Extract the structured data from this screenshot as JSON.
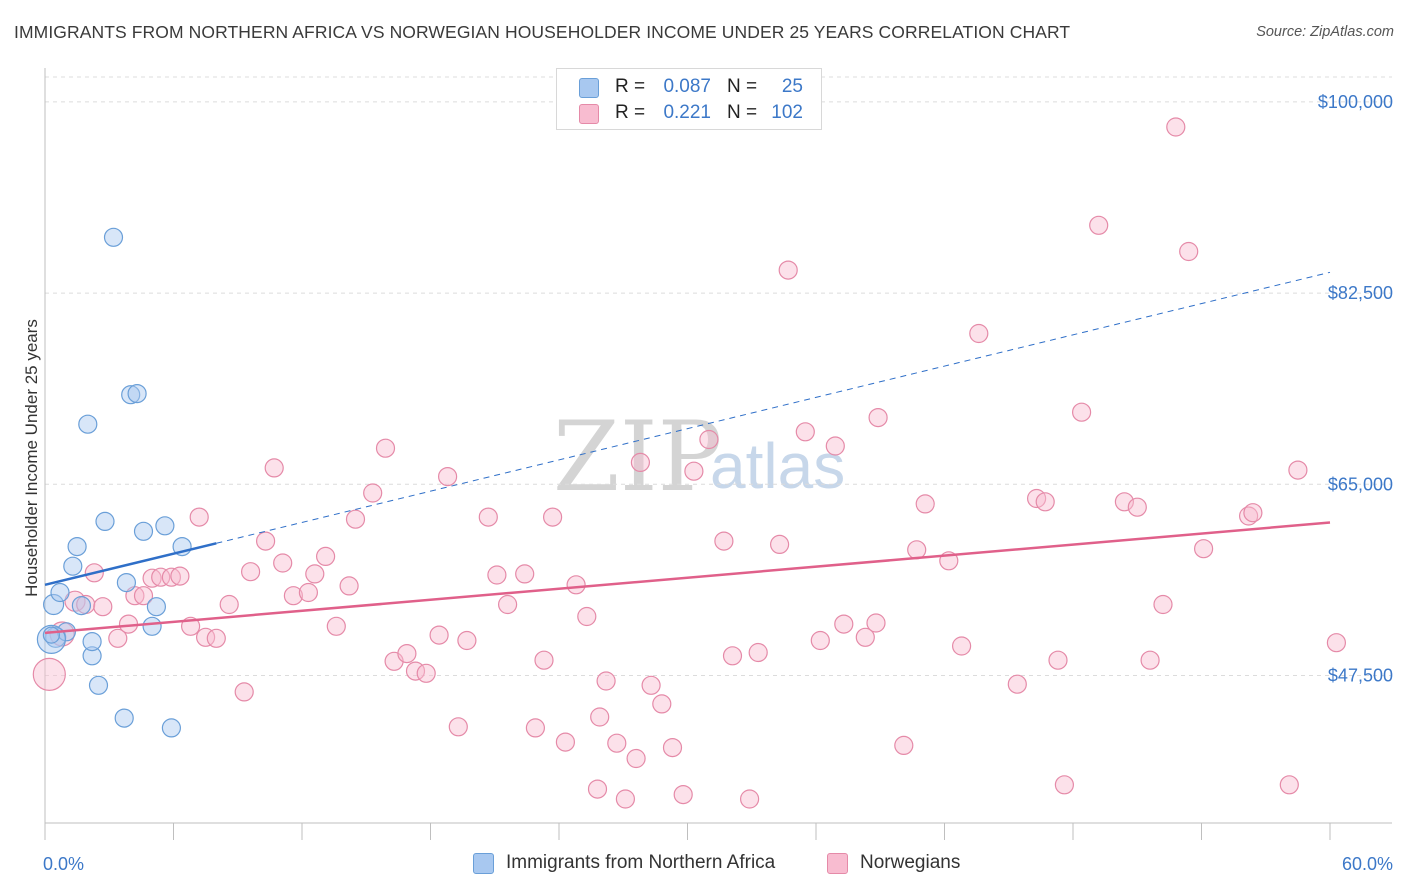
{
  "title": "IMMIGRANTS FROM NORTHERN AFRICA VS NORWEGIAN HOUSEHOLDER INCOME UNDER 25 YEARS CORRELATION CHART",
  "source": "Source: ZipAtlas.com",
  "watermark": {
    "zip": "ZIP",
    "atlas": "atlas"
  },
  "legend": {
    "rows": [
      {
        "r_label": "R =",
        "r_value": "0.087",
        "n_label": "N =",
        "n_value": "25",
        "color": "#a8c8f0",
        "border": "#6a9fd8"
      },
      {
        "r_label": "R =",
        "r_value": "0.221",
        "n_label": "N =",
        "n_value": "102",
        "color": "#f8bcd0",
        "border": "#e58aa8"
      }
    ]
  },
  "bottom_legend": [
    {
      "label": "Immigrants from Northern Africa",
      "color": "#a8c8f0",
      "border": "#6a9fd8"
    },
    {
      "label": "Norwegians",
      "color": "#f8bcd0",
      "border": "#e58aa8"
    }
  ],
  "chart_data": {
    "type": "scatter",
    "title": "IMMIGRANTS FROM NORTHERN AFRICA VS NORWEGIAN HOUSEHOLDER INCOME UNDER 25 YEARS CORRELATION CHART",
    "xlabel": "",
    "ylabel": "Householder Income Under 25 years",
    "xlim": [
      0,
      60
    ],
    "ylim": [
      34000,
      102000
    ],
    "x_tick_labels": [
      {
        "value": 0,
        "label": "0.0%"
      },
      {
        "value": 60,
        "label": "60.0%"
      }
    ],
    "y_ticks": [
      {
        "value": 47500,
        "label": "$47,500"
      },
      {
        "value": 65000,
        "label": "$65,000"
      },
      {
        "value": 82500,
        "label": "$82,500"
      },
      {
        "value": 100000,
        "label": "$100,000"
      }
    ],
    "grid": true,
    "legend_position": "top-center",
    "series": [
      {
        "name": "Immigrants from Northern Africa",
        "color": "#a8c8f0",
        "stroke": "#6a9fd8",
        "trend": {
          "x0": 0,
          "y0": 55800,
          "x1": 8,
          "y1": 59600,
          "dashed_to_x": 60,
          "dashed_to_y": 84400,
          "color": "#2f6fc8"
        },
        "points": [
          [
            0.4,
            54000,
            10
          ],
          [
            0.5,
            51000,
            10
          ],
          [
            0.7,
            55100,
            9
          ],
          [
            1.0,
            51500,
            9
          ],
          [
            1.3,
            57500,
            9
          ],
          [
            1.5,
            59300,
            9
          ],
          [
            1.7,
            53900,
            9
          ],
          [
            2.0,
            70500,
            9
          ],
          [
            2.2,
            49300,
            9
          ],
          [
            2.2,
            50600,
            9
          ],
          [
            2.5,
            46600,
            9
          ],
          [
            2.8,
            61600,
            9
          ],
          [
            3.2,
            87600,
            9
          ],
          [
            3.7,
            43600,
            9
          ],
          [
            3.8,
            56000,
            9
          ],
          [
            4.0,
            73200,
            9
          ],
          [
            4.3,
            73300,
            9
          ],
          [
            4.6,
            60700,
            9
          ],
          [
            5.0,
            52000,
            9
          ],
          [
            5.2,
            53800,
            9
          ],
          [
            5.6,
            61200,
            9
          ],
          [
            5.9,
            42700,
            9
          ],
          [
            6.4,
            59300,
            9
          ],
          [
            0.3,
            50800,
            14
          ],
          [
            0.3,
            51200,
            8
          ]
        ]
      },
      {
        "name": "Norwegians",
        "color": "#f8bcd0",
        "stroke": "#e58aa8",
        "trend": {
          "x0": 0,
          "y0": 51400,
          "x1": 60,
          "y1": 61500,
          "color": "#e0608a"
        },
        "points": [
          [
            0.2,
            47600,
            16
          ],
          [
            0.8,
            51300,
            12
          ],
          [
            1.4,
            54300,
            10
          ],
          [
            1.9,
            54000,
            9
          ],
          [
            2.3,
            56900,
            9
          ],
          [
            2.7,
            53800,
            9
          ],
          [
            3.4,
            50900,
            9
          ],
          [
            3.9,
            52200,
            9
          ],
          [
            4.2,
            54800,
            9
          ],
          [
            4.6,
            54800,
            9
          ],
          [
            5.0,
            56400,
            9
          ],
          [
            5.4,
            56500,
            9
          ],
          [
            5.9,
            56500,
            9
          ],
          [
            6.3,
            56600,
            9
          ],
          [
            6.8,
            52000,
            9
          ],
          [
            7.2,
            62000,
            9
          ],
          [
            7.5,
            51000,
            9
          ],
          [
            8.0,
            50900,
            9
          ],
          [
            8.6,
            54000,
            9
          ],
          [
            9.3,
            46000,
            9
          ],
          [
            9.6,
            57000,
            9
          ],
          [
            10.3,
            59800,
            9
          ],
          [
            10.7,
            66500,
            9
          ],
          [
            11.1,
            57800,
            9
          ],
          [
            11.6,
            54800,
            9
          ],
          [
            12.3,
            55100,
            9
          ],
          [
            12.6,
            56800,
            9
          ],
          [
            13.1,
            58400,
            9
          ],
          [
            13.6,
            52000,
            9
          ],
          [
            14.2,
            55700,
            9
          ],
          [
            14.5,
            61800,
            9
          ],
          [
            15.3,
            64200,
            9
          ],
          [
            15.9,
            68300,
            9
          ],
          [
            16.3,
            48800,
            9
          ],
          [
            16.9,
            49500,
            9
          ],
          [
            17.3,
            47900,
            9
          ],
          [
            17.8,
            47700,
            9
          ],
          [
            18.4,
            51200,
            9
          ],
          [
            18.8,
            65700,
            9
          ],
          [
            19.3,
            42800,
            9
          ],
          [
            19.7,
            50700,
            9
          ],
          [
            20.7,
            62000,
            9
          ],
          [
            21.1,
            56700,
            9
          ],
          [
            21.6,
            54000,
            9
          ],
          [
            22.4,
            56800,
            9
          ],
          [
            22.9,
            42700,
            9
          ],
          [
            23.3,
            48900,
            9
          ],
          [
            23.7,
            62000,
            9
          ],
          [
            24.3,
            41400,
            9
          ],
          [
            24.8,
            55800,
            9
          ],
          [
            25.3,
            52900,
            9
          ],
          [
            25.8,
            37100,
            9
          ],
          [
            25.9,
            43700,
            9
          ],
          [
            26.2,
            47000,
            9
          ],
          [
            26.7,
            41300,
            9
          ],
          [
            27.1,
            36200,
            9
          ],
          [
            27.6,
            39900,
            9
          ],
          [
            27.8,
            67000,
            9
          ],
          [
            28.3,
            46600,
            9
          ],
          [
            28.8,
            44900,
            9
          ],
          [
            29.3,
            40900,
            9
          ],
          [
            29.8,
            36600,
            9
          ],
          [
            30.3,
            66200,
            9
          ],
          [
            31.0,
            69100,
            9
          ],
          [
            31.7,
            59800,
            9
          ],
          [
            32.1,
            49300,
            9
          ],
          [
            32.9,
            36200,
            9
          ],
          [
            33.3,
            49600,
            9
          ],
          [
            34.3,
            59500,
            9
          ],
          [
            34.7,
            84600,
            9
          ],
          [
            35.5,
            69800,
            9
          ],
          [
            36.2,
            50700,
            9
          ],
          [
            36.9,
            68500,
            9
          ],
          [
            37.3,
            52200,
            9
          ],
          [
            38.3,
            51000,
            9
          ],
          [
            38.9,
            71100,
            9
          ],
          [
            38.8,
            52300,
            9
          ],
          [
            40.1,
            41100,
            9
          ],
          [
            40.7,
            59000,
            9
          ],
          [
            41.1,
            63200,
            9
          ],
          [
            42.2,
            58000,
            9
          ],
          [
            42.8,
            50200,
            9
          ],
          [
            43.6,
            78800,
            9
          ],
          [
            45.4,
            46700,
            9
          ],
          [
            46.3,
            63700,
            9
          ],
          [
            46.7,
            63400,
            9
          ],
          [
            47.3,
            48900,
            9
          ],
          [
            47.6,
            37500,
            9
          ],
          [
            48.4,
            71600,
            9
          ],
          [
            49.2,
            88700,
            9
          ],
          [
            50.4,
            63400,
            9
          ],
          [
            51.0,
            62900,
            9
          ],
          [
            51.6,
            48900,
            9
          ],
          [
            52.2,
            54000,
            9
          ],
          [
            52.8,
            97700,
            9
          ],
          [
            53.4,
            86300,
            9
          ],
          [
            54.1,
            59100,
            9
          ],
          [
            56.2,
            62100,
            9
          ],
          [
            56.4,
            62400,
            9
          ],
          [
            58.1,
            37500,
            9
          ],
          [
            58.5,
            66300,
            9
          ],
          [
            60.3,
            50500,
            9
          ]
        ]
      }
    ]
  }
}
